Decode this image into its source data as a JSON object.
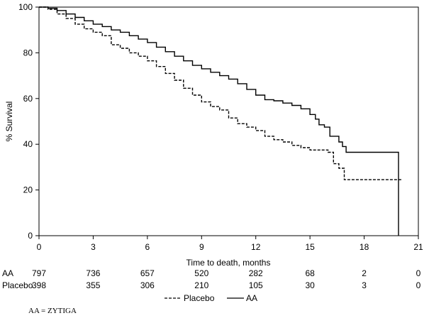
{
  "chart_data": {
    "type": "line",
    "chart_kind": "kaplan-meier survival curve",
    "xlabel": "Time to death, months",
    "ylabel": "% Survival",
    "xlim": [
      0,
      21
    ],
    "ylim": [
      0,
      100
    ],
    "x_ticks": [
      0,
      3,
      6,
      9,
      12,
      15,
      18,
      21
    ],
    "y_ticks": [
      0,
      20,
      40,
      60,
      80,
      100
    ],
    "grid": false,
    "series": [
      {
        "name": "AA",
        "line_style": "solid",
        "color": "#000000",
        "x": [
          0,
          0.5,
          1,
          1.5,
          2,
          2.5,
          3,
          3.5,
          4,
          4.5,
          5,
          5.5,
          6,
          6.5,
          7,
          7.5,
          8,
          8.5,
          9,
          9.5,
          10,
          10.5,
          11,
          11.5,
          12,
          12.5,
          13,
          13.5,
          14,
          14.5,
          15,
          15.3,
          15.5,
          15.8,
          16.1,
          16.4,
          16.6,
          16.8,
          17,
          17.5,
          18,
          18.5,
          19,
          19.5,
          19.9
        ],
        "y": [
          100,
          99.5,
          98.5,
          97,
          95.5,
          94,
          92.5,
          91.5,
          90,
          89,
          87.5,
          86,
          84.5,
          82.5,
          80.5,
          78.5,
          76.5,
          74.5,
          73,
          71.5,
          70,
          68.5,
          66.5,
          64,
          61.5,
          59.5,
          59,
          58,
          57,
          55.5,
          53,
          51,
          48.5,
          47.5,
          43.5,
          43.5,
          41,
          39,
          36.5,
          36.5,
          36.5,
          36.5,
          36.5,
          36.5,
          0
        ]
      },
      {
        "name": "Placebo",
        "line_style": "dashed",
        "color": "#000000",
        "x": [
          0,
          0.5,
          1,
          1.5,
          2,
          2.5,
          3,
          3.5,
          4,
          4.5,
          5,
          5.5,
          6,
          6.5,
          7,
          7.5,
          8,
          8.5,
          9,
          9.5,
          10,
          10.5,
          11,
          11.5,
          12,
          12.5,
          13,
          13.5,
          14,
          14.5,
          15,
          15.5,
          16,
          16.3,
          16.6,
          16.9,
          17,
          17.5,
          18,
          18.5,
          19,
          19.5,
          20.1
        ],
        "y": [
          100,
          99,
          97,
          95,
          92.5,
          90.5,
          89,
          87.5,
          83.5,
          82,
          80,
          78.5,
          76.5,
          74,
          71,
          68,
          64.5,
          61.5,
          58.5,
          56.5,
          55,
          51.5,
          49,
          47.5,
          46,
          43.5,
          42,
          41,
          39.5,
          38.5,
          37.5,
          37.5,
          36.5,
          31.5,
          29.5,
          24.5,
          24.5,
          24.5,
          24.5,
          24.5,
          24.5,
          24.5,
          24.5
        ]
      }
    ],
    "legend": {
      "placement": "bottom-center",
      "entries": [
        {
          "label": "Placebo",
          "line_style": "dashed"
        },
        {
          "label": "AA",
          "line_style": "solid"
        }
      ]
    },
    "at_risk": {
      "times": [
        0,
        3,
        6,
        9,
        12,
        15,
        18,
        21
      ],
      "rows": [
        {
          "label": "AA",
          "counts": [
            797,
            736,
            657,
            520,
            282,
            68,
            2,
            0
          ]
        },
        {
          "label": "Placebo",
          "counts": [
            398,
            355,
            306,
            210,
            105,
            30,
            3,
            0
          ]
        }
      ]
    }
  },
  "footnote": "AA = ZYTIGA"
}
